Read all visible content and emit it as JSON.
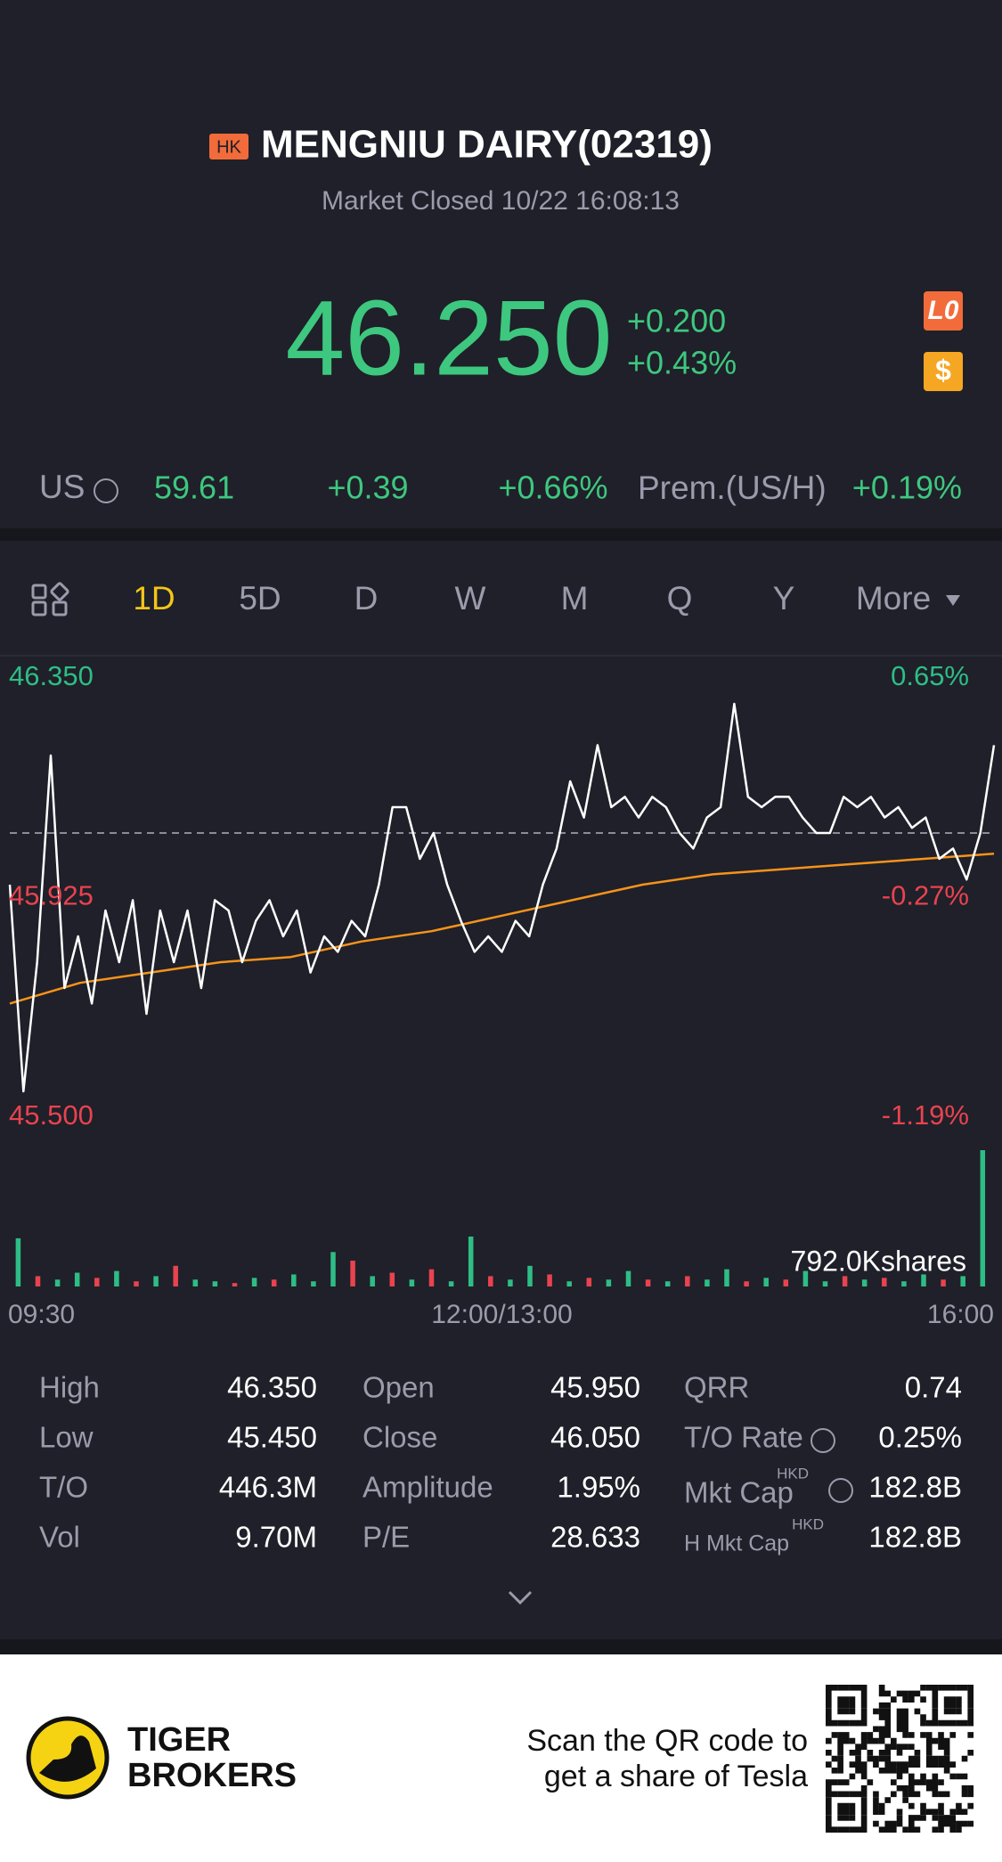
{
  "header": {
    "badge": "HK",
    "title": "MENGNIU DAIRY(02319)",
    "status": "Market Closed 10/22 16:08:13"
  },
  "quote": {
    "price": "46.250",
    "change": "+0.200",
    "change_pct": "+0.43%",
    "icons": [
      "L0",
      "$"
    ]
  },
  "us_row": {
    "label": "US",
    "price": "59.61",
    "change": "+0.39",
    "change_pct": "+0.66%",
    "premium_label": "Prem.(US/H)",
    "premium": "+0.19%"
  },
  "tabs": [
    "1D",
    "5D",
    "D",
    "W",
    "M",
    "Q",
    "Y",
    "More"
  ],
  "chart_data": {
    "type": "line",
    "ylim": [
      45.5,
      46.35
    ],
    "yticks": [
      {
        "value": 45.5,
        "label": "45.500"
      },
      {
        "value": 45.925,
        "label": "45.925"
      },
      {
        "value": 46.35,
        "label": "46.350"
      }
    ],
    "y2lim": [
      -1.19,
      0.65
    ],
    "y2ticks": [
      {
        "value": -1.19,
        "label": "-1.19%"
      },
      {
        "value": -0.27,
        "label": "-0.27%"
      },
      {
        "value": 0.65,
        "label": "0.65%"
      }
    ],
    "reference_line": 46.05,
    "up_color": "#2ebd85",
    "down_color": "#e8434f",
    "x_labels": [
      "09:30",
      "12:00/13:00",
      "16:00"
    ],
    "series": [
      {
        "color": "#ffffff",
        "values": [
          45.95,
          45.55,
          45.8,
          46.2,
          45.75,
          45.85,
          45.72,
          45.9,
          45.8,
          45.92,
          45.7,
          45.9,
          45.8,
          45.9,
          45.75,
          45.92,
          45.9,
          45.8,
          45.88,
          45.92,
          45.85,
          45.9,
          45.78,
          45.85,
          45.82,
          45.88,
          45.85,
          45.95,
          46.1,
          46.1,
          46.0,
          46.05,
          45.95,
          45.88,
          45.82,
          45.85,
          45.82,
          45.88,
          45.85,
          45.95,
          46.02,
          46.15,
          46.08,
          46.22,
          46.1,
          46.12,
          46.08,
          46.12,
          46.1,
          46.05,
          46.02,
          46.08,
          46.1,
          46.3,
          46.12,
          46.1,
          46.12,
          46.12,
          46.08,
          46.05,
          46.05,
          46.12,
          46.1,
          46.12,
          46.08,
          46.1,
          46.06,
          46.08,
          46.0,
          46.02,
          45.96,
          46.05,
          46.22
        ]
      },
      {
        "color": "#f7931a",
        "values": [
          45.72,
          45.76,
          45.78,
          45.8,
          45.81,
          45.84,
          45.86,
          45.89,
          45.92,
          45.95,
          45.97,
          45.98,
          45.99,
          46.0,
          46.01
        ]
      }
    ],
    "volume": {
      "label": "792.0Kshares",
      "values": [
        280,
        60,
        40,
        80,
        50,
        90,
        30,
        60,
        120,
        40,
        30,
        20,
        50,
        40,
        70,
        30,
        200,
        150,
        60,
        80,
        40,
        100,
        30,
        290,
        60,
        40,
        120,
        70,
        30,
        50,
        40,
        90,
        40,
        30,
        60,
        40,
        100,
        30,
        50,
        40,
        90,
        30,
        60,
        40,
        50,
        30,
        70,
        40,
        60,
        792
      ],
      "directions": [
        "up",
        "down",
        "up",
        "up",
        "down",
        "up",
        "down",
        "up",
        "down",
        "up",
        "up",
        "down",
        "up",
        "down",
        "up",
        "up",
        "up",
        "down",
        "up",
        "down",
        "up",
        "down",
        "up",
        "up",
        "down",
        "up",
        "up",
        "down",
        "up",
        "down",
        "up",
        "up",
        "down",
        "up",
        "down",
        "up",
        "up",
        "down",
        "up",
        "down",
        "up",
        "up",
        "down",
        "up",
        "down",
        "up",
        "up",
        "down",
        "up",
        "up"
      ]
    }
  },
  "stats": {
    "currency": "HKD",
    "rows": [
      [
        "High",
        "46.350",
        "Open",
        "45.950",
        "QRR",
        "0.74"
      ],
      [
        "Low",
        "45.450",
        "Close",
        "46.050",
        "T/O Rate",
        "0.25%"
      ],
      [
        "T/O",
        "446.3M",
        "Amplitude",
        "1.95%",
        "Mkt Cap",
        "182.8B"
      ],
      [
        "Vol",
        "9.70M",
        "P/E",
        "28.633",
        "H Mkt Cap",
        "182.8B"
      ]
    ]
  },
  "footer": {
    "brand": [
      "TIGER",
      "BROKERS"
    ],
    "promo": [
      "Scan the QR code to",
      "get a share of Tesla"
    ]
  }
}
